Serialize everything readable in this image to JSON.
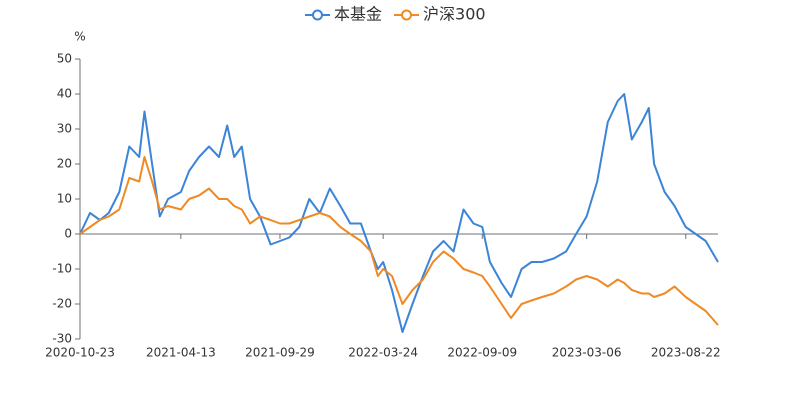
{
  "chart_data": {
    "type": "line",
    "y_label": "%",
    "x": [
      "2020-10-23",
      "2020-11-09",
      "2020-11-26",
      "2020-12-11",
      "2020-12-29",
      "2021-01-15",
      "2021-02-01",
      "2021-02-10",
      "2021-02-23",
      "2021-03-08",
      "2021-03-22",
      "2021-04-13",
      "2021-04-27",
      "2021-05-14",
      "2021-05-31",
      "2021-06-17",
      "2021-07-01",
      "2021-07-13",
      "2021-07-26",
      "2021-08-09",
      "2021-08-26",
      "2021-09-13",
      "2021-09-29",
      "2021-10-15",
      "2021-11-01",
      "2021-11-18",
      "2021-12-06",
      "2021-12-23",
      "2022-01-10",
      "2022-01-27",
      "2022-02-14",
      "2022-03-03",
      "2022-03-15",
      "2022-03-24",
      "2022-04-08",
      "2022-04-26",
      "2022-05-13",
      "2022-05-31",
      "2022-06-17",
      "2022-07-05",
      "2022-07-22",
      "2022-08-08",
      "2022-08-25",
      "2022-09-09",
      "2022-09-22",
      "2022-10-12",
      "2022-10-28",
      "2022-11-15",
      "2022-12-02",
      "2022-12-20",
      "2023-01-09",
      "2023-01-30",
      "2023-02-16",
      "2023-03-06",
      "2023-03-24",
      "2023-04-11",
      "2023-04-28",
      "2023-05-09",
      "2023-05-22",
      "2023-06-08",
      "2023-06-20",
      "2023-06-29",
      "2023-07-17",
      "2023-08-03",
      "2023-08-22",
      "2023-09-08",
      "2023-09-25",
      "2023-10-16"
    ],
    "series": [
      {
        "name": "本基金",
        "color": "#3b84d8",
        "values": [
          0,
          6,
          4,
          6,
          12,
          25,
          22,
          35,
          20,
          5,
          10,
          12,
          18,
          22,
          25,
          22,
          31,
          22,
          25,
          10,
          5,
          -3,
          -2,
          -1,
          2,
          10,
          6,
          13,
          8,
          3,
          3,
          -5,
          -10,
          -8,
          -16,
          -28,
          -20,
          -12,
          -5,
          -2,
          -5,
          7,
          3,
          2,
          -8,
          -14,
          -18,
          -10,
          -8,
          -8,
          -7,
          -5,
          0,
          5,
          15,
          32,
          38,
          40,
          27,
          32,
          36,
          20,
          12,
          8,
          2,
          0,
          -2,
          -8
        ]
      },
      {
        "name": "沪深300",
        "color": "#f08a24",
        "values": [
          0,
          2,
          4,
          5,
          7,
          16,
          15,
          22,
          15,
          7,
          8,
          7,
          10,
          11,
          13,
          10,
          10,
          8,
          7,
          3,
          5,
          4,
          3,
          3,
          4,
          5,
          6,
          5,
          2,
          0,
          -2,
          -5,
          -12,
          -10,
          -12,
          -20,
          -16,
          -13,
          -8,
          -5,
          -7,
          -10,
          -11,
          -12,
          -15,
          -20,
          -24,
          -20,
          -19,
          -18,
          -17,
          -15,
          -13,
          -12,
          -13,
          -15,
          -13,
          -14,
          -16,
          -17,
          -17,
          -18,
          -17,
          -15,
          -18,
          -20,
          -22,
          -26
        ]
      }
    ],
    "xlim": [
      "2020-10-23",
      "2023-10-16"
    ],
    "xticks": [
      "2020-10-23",
      "2021-04-13",
      "2021-09-29",
      "2022-03-24",
      "2022-09-09",
      "2023-03-06",
      "2023-08-22"
    ],
    "ylim": [
      -30,
      50
    ],
    "yticks": [
      -30,
      -20,
      -10,
      0,
      10,
      20,
      30,
      40,
      50
    ]
  }
}
